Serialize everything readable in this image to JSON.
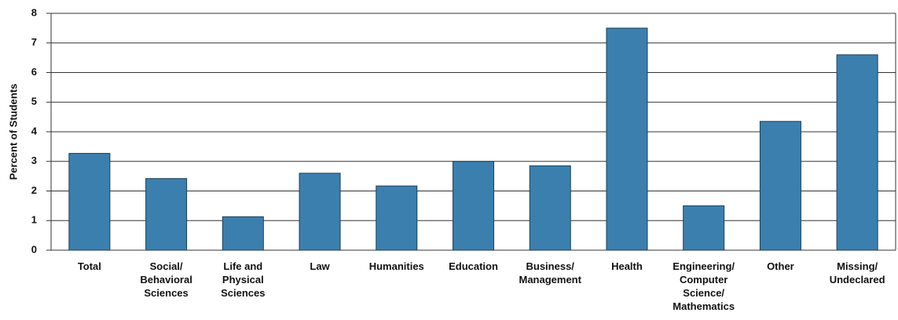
{
  "chart_data": {
    "type": "bar",
    "ylabel": "Percent of Students",
    "categories": [
      "Total",
      "Social/\nBehavioral\nSciences",
      "Life and\nPhysical\nSciences",
      "Law",
      "Humanities",
      "Education",
      "Business/\nManagement",
      "Health",
      "Engineering/\nComputer\nScience/\nMathematics",
      "Other",
      "Missing/\nUndeclared"
    ],
    "values": [
      3.27,
      2.42,
      1.13,
      2.6,
      2.17,
      3.0,
      2.85,
      7.5,
      1.5,
      4.35,
      6.6
    ],
    "color": "#3b7fae",
    "ylim": [
      0,
      8
    ],
    "yticks": [
      0,
      1,
      2,
      3,
      4,
      5,
      6,
      7,
      8
    ],
    "grid": true
  }
}
